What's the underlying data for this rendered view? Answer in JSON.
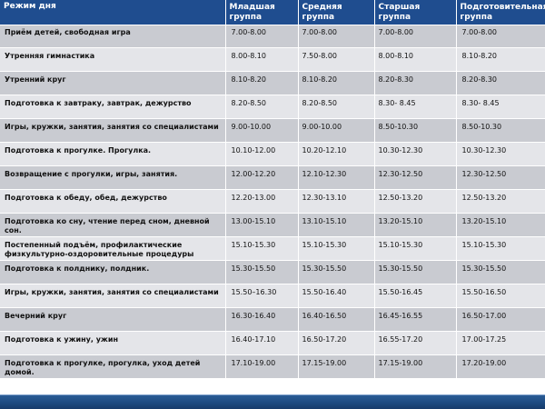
{
  "headers": [
    "Режим дня",
    "Младшая группа",
    "Средняя группа",
    "Старшая группа",
    "Подготовительная группа"
  ],
  "rows": [
    {
      "activity": "Приём  детей, свободная игра",
      "times": [
        "7.00-8.00",
        "7.00-8.00",
        "7.00-8.00",
        "7.00-8.00"
      ]
    },
    {
      "activity": "Утренняя гимнастика",
      "times": [
        "8.00-8.10",
        "7.50-8.00",
        "8.00-8.10",
        "8.10-8.20"
      ]
    },
    {
      "activity": "Утренний круг",
      "times": [
        "8.10-8.20",
        "8.10-8.20",
        "8.20-8.30",
        "8.20-8.30"
      ]
    },
    {
      "activity": "Подготовка к завтраку, завтрак, дежурство",
      "times": [
        "8.20-8.50",
        "8.20-8.50",
        "8.30- 8.45",
        "8.30- 8.45"
      ]
    },
    {
      "activity": "Игры, кружки, занятия, занятия  со специалистами",
      "times": [
        "9.00-10.00",
        "9.00-10.00",
        "8.50-10.30",
        "8.50-10.30"
      ]
    },
    {
      "activity": "Подготовка к прогулке. Прогулка.",
      "times": [
        "10.10-12.00",
        "10.20-12.10",
        "10.30-12.30",
        "10.30-12.30"
      ]
    },
    {
      "activity": "Возвращение  с прогулки, игры, занятия.",
      "times": [
        "12.00-12.20",
        "12.10-12.30",
        "12.30-12.50",
        "12.30-12.50"
      ]
    },
    {
      "activity": "Подготовка к  обеду, обед, дежурство",
      "times": [
        "12.20-13.00",
        "12.30-13.10",
        "12.50-13.20",
        "12.50-13.20"
      ]
    },
    {
      "activity": "Подготовка ко сну, чтение перед сном, дневной сон.",
      "times": [
        "13.00-15.10",
        "13.10-15.10",
        "13.20-15.10",
        "13.20-15.10"
      ]
    },
    {
      "activity": "Постепенный подъём, профилактические физкультурно-оздоровительные процедуры",
      "times": [
        "15.10-15.30",
        "15.10-15.30",
        "15.10-15.30",
        "15.10-15.30"
      ]
    },
    {
      "activity": "Подготовка к полднику,  полдник.",
      "times": [
        "15.30-15.50",
        "15.30-15.50",
        "15.30-15.50",
        "15.30-15.50"
      ]
    },
    {
      "activity": "Игры, кружки, занятия, занятия  со специалистами",
      "times": [
        "15.50–16.30",
        "15.50-16.40",
        "15.50-16.45",
        "15.50-16.50"
      ]
    },
    {
      "activity": "Вечерний  круг",
      "times": [
        "16.30-16.40",
        "16.40-16.50",
        "16.45-16.55",
        "16.50-17.00"
      ]
    },
    {
      "activity": "Подготовка к ужину,  ужин",
      "times": [
        "16.40-17.10",
        "16.50-17.20",
        "16.55-17.20",
        "17.00-17.25"
      ]
    },
    {
      "activity": "Подготовка к прогулке, прогулка, уход детей домой.",
      "times": [
        "17.10-19.00",
        "17.15-19.00",
        "17.15-19.00",
        "17.20-19.00"
      ]
    }
  ],
  "colors": {
    "header_bg": "#1f4d8f",
    "row_dark": "#c9cbd1",
    "row_light": "#e4e5e9",
    "bottom_bar": "#1d4a80"
  }
}
